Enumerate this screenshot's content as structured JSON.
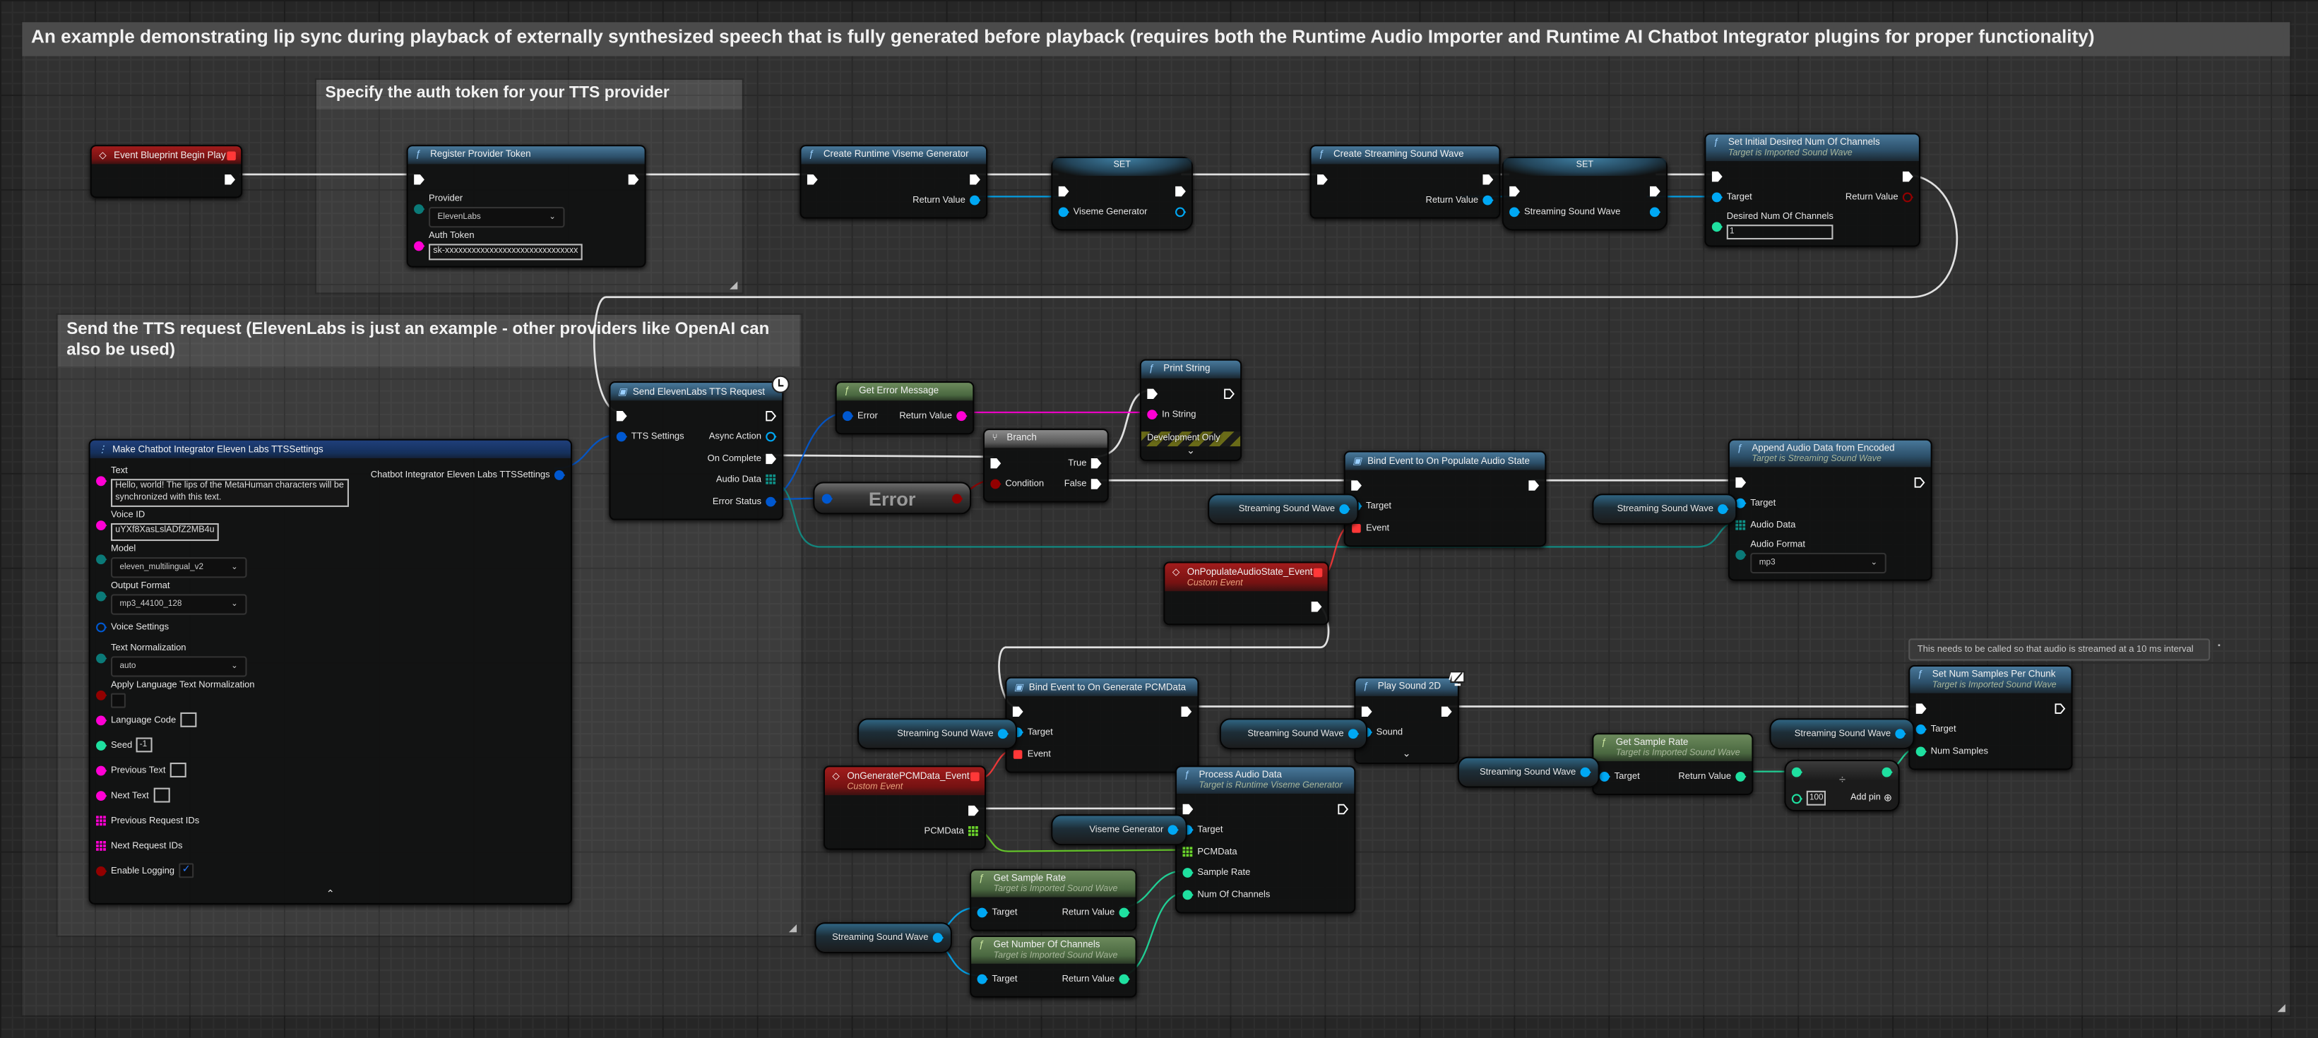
{
  "comments": {
    "outer": "An example demonstrating lip sync during playback of externally synthesized speech that is fully generated before playback (requires both the Runtime Audio Importer and Runtime AI Chatbot Integrator plugins for proper functionality)",
    "token": "Specify the auth token for your TTS provider",
    "tts": "Send the TTS request (ElevenLabs is just an example - other providers like OpenAI can also be used)",
    "note": "This needs to be called so that audio is streamed at a 10 ms interval"
  },
  "colors": {
    "exec": "#ffffff",
    "object": "#00a8f4",
    "string": "#ff00d4",
    "enum": "#0b7a78",
    "struct": "#0058d0",
    "bool": "#930000",
    "int": "#1fe0a0",
    "byte_array": "#0f8f86",
    "float_array": "#6ad42b",
    "delegate": "#ff3838"
  },
  "nodes": [
    {
      "id": "begin_play",
      "kind": "event",
      "icon": "event-diamond-icon",
      "title": "Event Blueprint Begin Play",
      "header_pin": "delegate",
      "inputs": [],
      "outputs": [
        {
          "type": "exec",
          "linked": true
        }
      ]
    },
    {
      "id": "register_token",
      "kind": "function",
      "icon": "function-icon",
      "title": "Register Provider Token",
      "inputs": [
        {
          "type": "exec",
          "linked": true
        },
        {
          "label": "Provider",
          "type": "enum",
          "widget": "dropdown",
          "value": "ElevenLabs"
        },
        {
          "label": "Auth Token",
          "type": "string",
          "widget": "text",
          "value": "sk-xxxxxxxxxxxxxxxxxxxxxxxxxxxxxx"
        }
      ],
      "outputs": [
        {
          "type": "exec",
          "linked": true
        }
      ]
    },
    {
      "id": "create_viseme",
      "kind": "function",
      "icon": "function-icon",
      "title": "Create Runtime Viseme Generator",
      "inputs": [
        {
          "type": "exec",
          "linked": true
        }
      ],
      "outputs": [
        {
          "type": "exec",
          "linked": true
        },
        {
          "label": "Return Value",
          "type": "object",
          "linked": true
        }
      ]
    },
    {
      "id": "set_viseme",
      "kind": "set",
      "title": "SET",
      "inputs": [
        {
          "type": "exec",
          "linked": true
        },
        {
          "label": "Viseme Generator",
          "type": "object",
          "linked": true
        }
      ],
      "outputs": [
        {
          "type": "exec",
          "linked": true
        },
        {
          "label": "",
          "type": "object",
          "linked": false
        }
      ]
    },
    {
      "id": "create_ssw",
      "kind": "function",
      "icon": "function-icon",
      "title": "Create Streaming Sound Wave",
      "inputs": [
        {
          "type": "exec",
          "linked": true
        }
      ],
      "outputs": [
        {
          "type": "exec",
          "linked": true
        },
        {
          "label": "Return Value",
          "type": "object",
          "linked": true
        }
      ]
    },
    {
      "id": "set_ssw",
      "kind": "set",
      "title": "SET",
      "inputs": [
        {
          "type": "exec",
          "linked": true
        },
        {
          "label": "Streaming Sound Wave",
          "type": "object",
          "linked": true
        }
      ],
      "outputs": [
        {
          "type": "exec",
          "linked": true
        },
        {
          "label": "",
          "type": "object",
          "linked": true
        }
      ]
    },
    {
      "id": "set_channels",
      "kind": "function",
      "icon": "function-icon",
      "title": "Set Initial Desired Num Of Channels",
      "subtitle": "Target is Imported Sound Wave",
      "inputs": [
        {
          "type": "exec",
          "linked": true
        },
        {
          "label": "Target",
          "type": "object",
          "linked": true
        },
        {
          "label": "Desired Num Of Channels",
          "type": "int",
          "widget": "number",
          "value": "1"
        }
      ],
      "outputs": [
        {
          "type": "exec",
          "linked": true
        },
        {
          "label": "Return Value",
          "type": "bool",
          "linked": false
        }
      ]
    },
    {
      "id": "make_settings",
      "kind": "struct",
      "icon": "make-struct-icon",
      "title": "Make Chatbot Integrator Eleven Labs TTSSettings",
      "collapse": true,
      "inputs": [
        {
          "label": "Text",
          "type": "string",
          "widget": "text",
          "value": "Hello, world! The lips of the MetaHuman characters will be\nsynchronized with this text."
        },
        {
          "label": "Voice ID",
          "type": "string",
          "widget": "text",
          "value": "uYXf8XasLslADfZ2MB4u"
        },
        {
          "label": "Model",
          "type": "enum",
          "widget": "dropdown",
          "value": "eleven_multilingual_v2"
        },
        {
          "label": "Output Format",
          "type": "enum",
          "widget": "dropdown",
          "value": "mp3_44100_128"
        },
        {
          "label": "Voice Settings",
          "type": "struct"
        },
        {
          "label": "Text Normalization",
          "type": "enum",
          "widget": "dropdown",
          "value": "auto"
        },
        {
          "label": "Apply Language Text Normalization",
          "type": "bool",
          "widget": "checkbox",
          "checked": false
        },
        {
          "label": "Language Code",
          "type": "string",
          "widget": "box",
          "value": ""
        },
        {
          "label": "Seed",
          "type": "int",
          "widget": "box",
          "value": "-1"
        },
        {
          "label": "Previous Text",
          "type": "string",
          "widget": "box",
          "value": ""
        },
        {
          "label": "Next Text",
          "type": "string",
          "widget": "box",
          "value": ""
        },
        {
          "label": "Previous Request IDs",
          "type": "string_array"
        },
        {
          "label": "Next Request IDs",
          "type": "string_array"
        },
        {
          "label": "Enable Logging",
          "type": "bool",
          "widget": "checkbox",
          "checked": true
        }
      ],
      "outputs": [
        {
          "label": "Chatbot Integrator Eleven Labs TTSSettings",
          "type": "struct",
          "linked": true
        }
      ]
    },
    {
      "id": "send_tts",
      "kind": "async",
      "icon": "async-node-icon",
      "title": "Send ElevenLabs TTS Request",
      "badge": "clock-icon",
      "inputs": [
        {
          "type": "exec",
          "linked": true
        },
        {
          "label": "TTS Settings",
          "type": "struct",
          "linked": true
        }
      ],
      "outputs": [
        {
          "type": "exec",
          "linked": false
        },
        {
          "label": "Async Action",
          "type": "object",
          "linked": false
        },
        {
          "label": "On Complete",
          "type": "exec",
          "linked": true
        },
        {
          "label": "Audio Data",
          "type": "byte_array",
          "linked": true
        },
        {
          "label": "Error Status",
          "type": "struct",
          "linked": true
        }
      ]
    },
    {
      "id": "get_error",
      "kind": "pure",
      "icon": "function-icon",
      "title": "Get Error Message",
      "inputs": [
        {
          "label": "Error",
          "type": "struct",
          "linked": true
        }
      ],
      "outputs": [
        {
          "label": "Return Value",
          "type": "string",
          "linked": true
        }
      ]
    },
    {
      "id": "error_var",
      "kind": "var",
      "title": "Error",
      "in_pin": "struct",
      "pin": "bool"
    },
    {
      "id": "branch",
      "kind": "branch",
      "icon": "branch-icon",
      "title": "Branch",
      "inputs": [
        {
          "type": "exec",
          "linked": true
        },
        {
          "label": "Condition",
          "type": "bool",
          "linked": true
        }
      ],
      "outputs": [
        {
          "label": "True",
          "type": "exec",
          "linked": true
        },
        {
          "label": "False",
          "type": "exec",
          "linked": true
        }
      ]
    },
    {
      "id": "print_string",
      "kind": "function",
      "icon": "function-icon",
      "title": "Print String",
      "footer": "Development Only",
      "expander": true,
      "inputs": [
        {
          "type": "exec",
          "linked": true
        },
        {
          "label": "In String",
          "type": "string",
          "linked": true
        }
      ],
      "outputs": [
        {
          "type": "exec",
          "linked": false
        }
      ]
    },
    {
      "id": "bind_populate",
      "kind": "async",
      "icon": "bind-event-icon",
      "title": "Bind Event to On Populate Audio State",
      "inputs": [
        {
          "type": "exec",
          "linked": true
        },
        {
          "label": "Target",
          "type": "object",
          "linked": true
        },
        {
          "label": "Event",
          "type": "delegate",
          "linked": true
        }
      ],
      "outputs": [
        {
          "type": "exec",
          "linked": true
        }
      ]
    },
    {
      "id": "ssw_a",
      "kind": "var",
      "title": "Streaming Sound Wave",
      "pin": "object"
    },
    {
      "id": "append",
      "kind": "function",
      "icon": "function-icon",
      "title": "Append Audio Data from Encoded",
      "subtitle": "Target is Streaming Sound Wave",
      "inputs": [
        {
          "type": "exec",
          "linked": true
        },
        {
          "label": "Target",
          "type": "object",
          "linked": true
        },
        {
          "label": "Audio Data",
          "type": "byte_array",
          "linked": true
        },
        {
          "label": "Audio Format",
          "type": "enum",
          "widget": "dropdown",
          "value": "mp3"
        }
      ],
      "outputs": [
        {
          "type": "exec",
          "linked": false
        }
      ]
    },
    {
      "id": "ssw_b",
      "kind": "var",
      "title": "Streaming Sound Wave",
      "pin": "object"
    },
    {
      "id": "on_populate",
      "kind": "event",
      "icon": "event-diamond-icon",
      "title": "OnPopulateAudioState_Event",
      "subtitle": "Custom Event",
      "header_pin": "delegate",
      "inputs": [],
      "outputs": [
        {
          "type": "exec",
          "linked": true
        }
      ]
    },
    {
      "id": "bind_gen",
      "kind": "async",
      "icon": "bind-event-icon",
      "title": "Bind Event to On Generate PCMData",
      "inputs": [
        {
          "type": "exec",
          "linked": true
        },
        {
          "label": "Target",
          "type": "object",
          "linked": true
        },
        {
          "label": "Event",
          "type": "delegate",
          "linked": true
        }
      ],
      "outputs": [
        {
          "type": "exec",
          "linked": true
        }
      ]
    },
    {
      "id": "ssw_c",
      "kind": "var",
      "title": "Streaming Sound Wave",
      "pin": "object"
    },
    {
      "id": "play2d",
      "kind": "function",
      "icon": "function-icon",
      "title": "Play Sound 2D",
      "badge": "monitor-icon",
      "expander": true,
      "inputs": [
        {
          "type": "exec",
          "linked": true
        },
        {
          "label": "Sound",
          "type": "object",
          "linked": true
        }
      ],
      "outputs": [
        {
          "type": "exec",
          "linked": true
        }
      ]
    },
    {
      "id": "ssw_d",
      "kind": "var",
      "title": "Streaming Sound Wave",
      "pin": "object"
    },
    {
      "id": "set_num_samples",
      "kind": "function",
      "icon": "function-icon",
      "title": "Set Num Samples Per Chunk",
      "subtitle": "Target is Imported Sound Wave",
      "inputs": [
        {
          "type": "exec",
          "linked": true
        },
        {
          "label": "Target",
          "type": "object",
          "linked": true
        },
        {
          "label": "Num Samples",
          "type": "int",
          "linked": true
        }
      ],
      "outputs": [
        {
          "type": "exec",
          "linked": false
        }
      ]
    },
    {
      "id": "ssw_e",
      "kind": "var",
      "title": "Streaming Sound Wave",
      "pin": "object"
    },
    {
      "id": "get_sr_right",
      "kind": "pure",
      "icon": "function-icon",
      "title": "Get Sample Rate",
      "subtitle": "Target is Imported Sound Wave",
      "inputs": [
        {
          "label": "Target",
          "type": "object",
          "linked": true
        }
      ],
      "outputs": [
        {
          "label": "Return Value",
          "type": "int",
          "linked": true
        }
      ]
    },
    {
      "id": "ssw_f",
      "kind": "var",
      "title": "Streaming Sound Wave",
      "pin": "object"
    },
    {
      "id": "divide",
      "kind": "operator",
      "symbol": "÷",
      "add_pin": "Add pin",
      "value": "100"
    },
    {
      "id": "on_generate",
      "kind": "event",
      "icon": "event-diamond-icon",
      "title": "OnGeneratePCMData_Event",
      "subtitle": "Custom Event",
      "header_pin": "delegate",
      "inputs": [],
      "outputs": [
        {
          "type": "exec",
          "linked": true
        },
        {
          "label": "PCMData",
          "type": "float_array",
          "linked": true
        }
      ]
    },
    {
      "id": "process",
      "kind": "function",
      "icon": "function-icon",
      "title": "Process Audio Data",
      "subtitle": "Target is Runtime Viseme Generator",
      "inputs": [
        {
          "type": "exec",
          "linked": true
        },
        {
          "label": "Target",
          "type": "object",
          "linked": true
        },
        {
          "label": "PCMData",
          "type": "float_array",
          "linked": true
        },
        {
          "label": "Sample Rate",
          "type": "int",
          "linked": true
        },
        {
          "label": "Num Of Channels",
          "type": "int",
          "linked": true
        }
      ],
      "outputs": [
        {
          "type": "exec",
          "linked": false
        }
      ]
    },
    {
      "id": "viseme_var",
      "kind": "var",
      "title": "Viseme Generator",
      "pin": "object"
    },
    {
      "id": "get_sr",
      "kind": "pure",
      "icon": "function-icon",
      "title": "Get Sample Rate",
      "subtitle": "Target is Imported Sound Wave",
      "inputs": [
        {
          "label": "Target",
          "type": "object",
          "linked": true
        }
      ],
      "outputs": [
        {
          "label": "Return Value",
          "type": "int",
          "linked": true
        }
      ]
    },
    {
      "id": "get_nc",
      "kind": "pure",
      "icon": "function-icon",
      "title": "Get Number Of Channels",
      "subtitle": "Target is Imported Sound Wave",
      "inputs": [
        {
          "label": "Target",
          "type": "object",
          "linked": true
        }
      ],
      "outputs": [
        {
          "label": "Return Value",
          "type": "int",
          "linked": true
        }
      ]
    },
    {
      "id": "ssw_g",
      "kind": "var",
      "title": "Streaming Sound Wave",
      "pin": "object"
    }
  ]
}
